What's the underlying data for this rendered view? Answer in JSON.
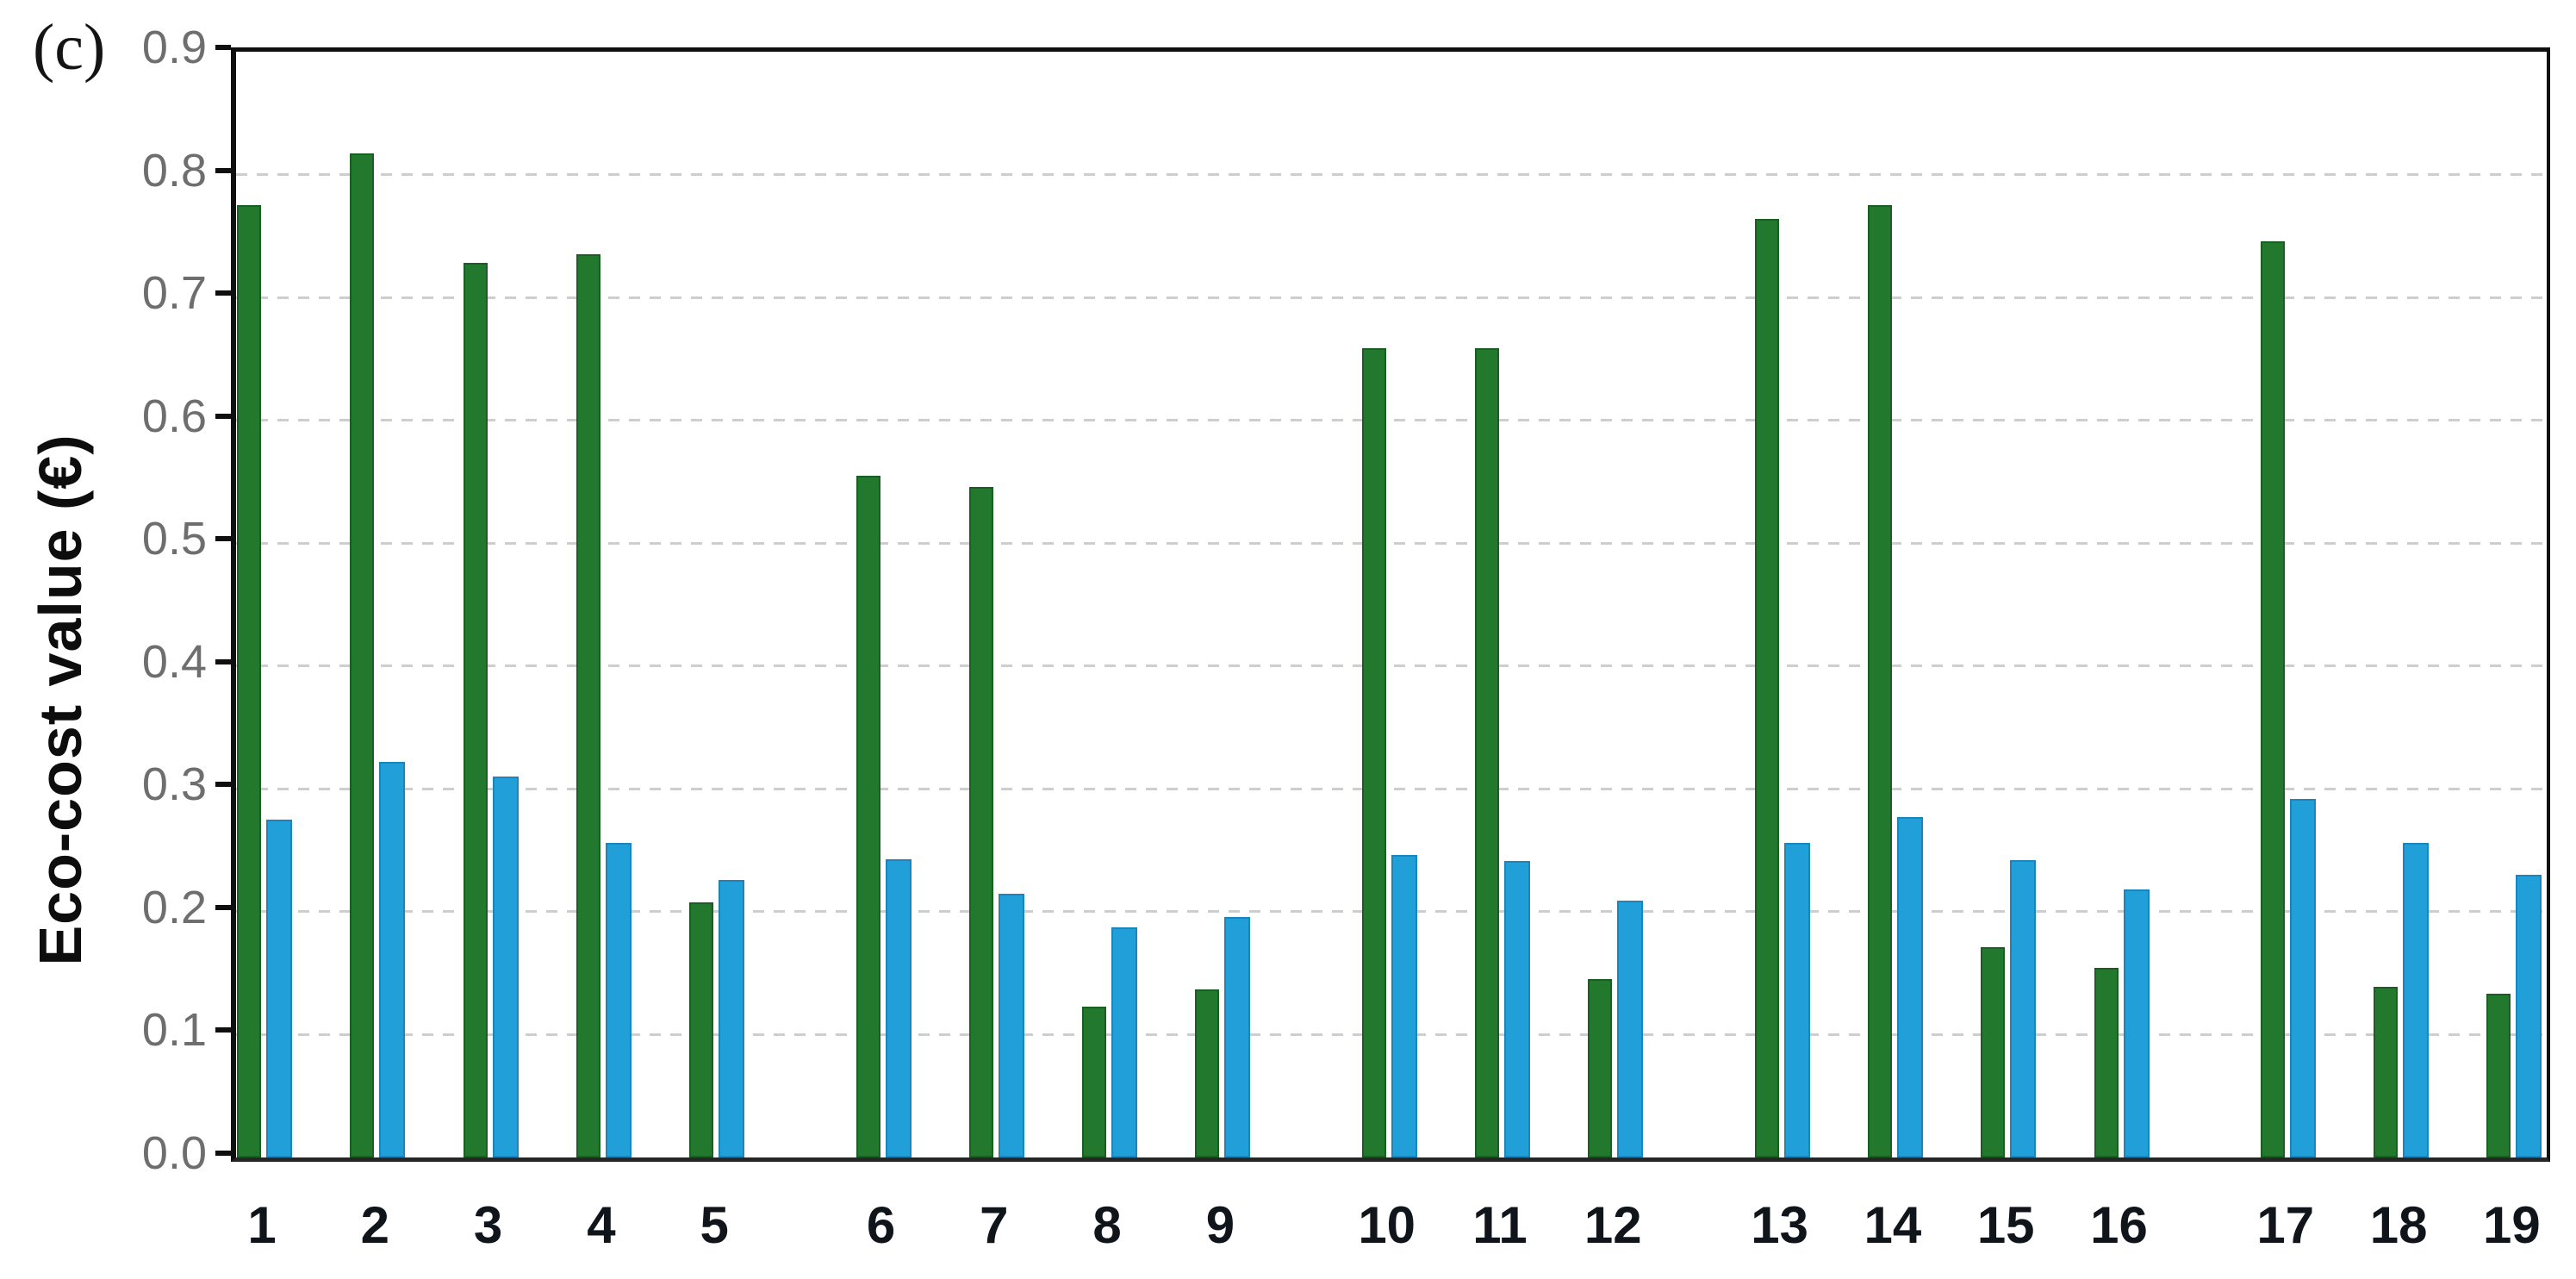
{
  "figure": {
    "panel_label": "(c)"
  },
  "y_axis": {
    "title": "Eco-cost value (€)",
    "tick_labels": [
      "0.0",
      "0.1",
      "0.2",
      "0.3",
      "0.4",
      "0.5",
      "0.6",
      "0.7",
      "0.8",
      "0.9"
    ]
  },
  "x_axis": {
    "tick_labels": [
      "1",
      "2",
      "3",
      "4",
      "5",
      "6",
      "7",
      "8",
      "9",
      "10",
      "11",
      "12",
      "13",
      "14",
      "15",
      "16",
      "17",
      "18",
      "19"
    ]
  },
  "chart_data": {
    "type": "bar",
    "title": "",
    "xlabel": "",
    "ylabel": "Eco-cost value (€)",
    "ylim": [
      0,
      0.9
    ],
    "ytick_step": 0.1,
    "grid": true,
    "gridline_style": "dashed",
    "legend_position": "none",
    "categories": [
      "1",
      "2",
      "3",
      "4",
      "5",
      "6",
      "7",
      "8",
      "9",
      "10",
      "11",
      "12",
      "13",
      "14",
      "15",
      "16",
      "17",
      "18",
      "19"
    ],
    "category_groups": [
      [
        "1",
        "2",
        "3",
        "4",
        "5"
      ],
      [
        "6",
        "7",
        "8",
        "9"
      ],
      [
        "10",
        "11",
        "12"
      ],
      [
        "13",
        "14",
        "15",
        "16"
      ],
      [
        "17",
        "18",
        "19"
      ]
    ],
    "series": [
      {
        "name": "green",
        "color": "#22782D",
        "values": [
          0.775,
          0.817,
          0.728,
          0.735,
          0.208,
          0.555,
          0.546,
          0.123,
          0.137,
          0.659,
          0.659,
          0.145,
          0.764,
          0.775,
          0.171,
          0.154,
          0.746,
          0.139,
          0.133
        ]
      },
      {
        "name": "blue",
        "color": "#209FD8",
        "values": [
          0.275,
          0.322,
          0.31,
          0.256,
          0.226,
          0.243,
          0.215,
          0.187,
          0.196,
          0.246,
          0.241,
          0.209,
          0.256,
          0.277,
          0.242,
          0.218,
          0.292,
          0.256,
          0.23
        ]
      }
    ]
  }
}
